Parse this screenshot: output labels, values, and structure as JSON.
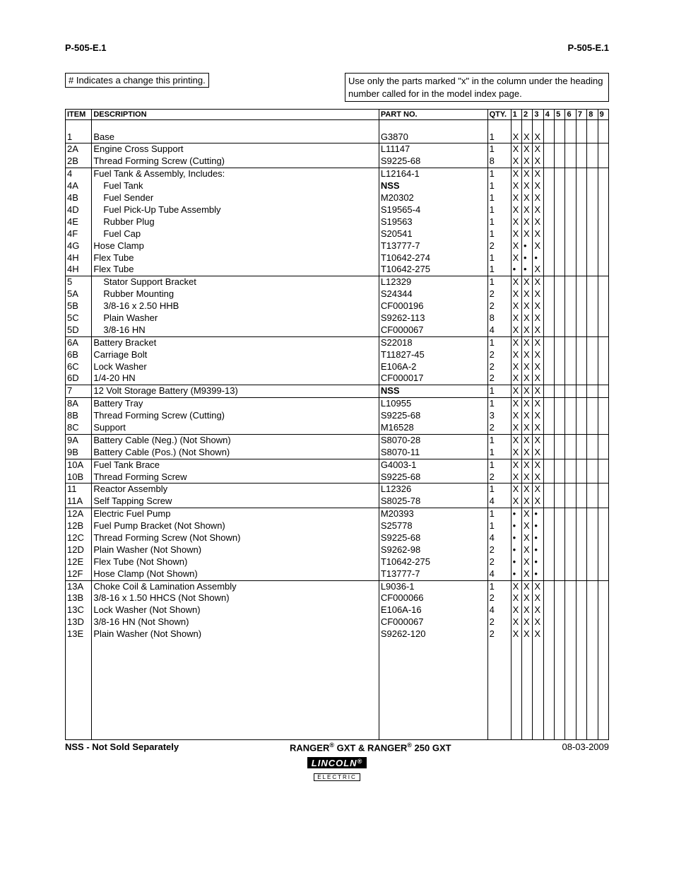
{
  "header": {
    "left": "P-505-E.1",
    "right": "P-505-E.1"
  },
  "notes": {
    "left": "# Indicates a change this printing.",
    "right": "Use only the parts marked \"x\" in the column under the heading number called for in the model index page."
  },
  "tableHeaders": {
    "item": "ITEM",
    "description": "DESCRIPTION",
    "partNo": "PART NO.",
    "qty": "QTY.",
    "cols": [
      "1",
      "2",
      "3",
      "4",
      "5",
      "6",
      "7",
      "8",
      "9"
    ]
  },
  "rows": [
    {
      "item": "1",
      "desc": "Base",
      "indent": 0,
      "part": "G3870",
      "qty": "1",
      "c": [
        "X",
        "X",
        "X",
        "",
        "",
        "",
        "",
        "",
        ""
      ],
      "groupTop": false
    },
    {
      "item": "2A",
      "desc": "Engine Cross Support",
      "indent": 0,
      "part": "L11147",
      "qty": "1",
      "c": [
        "X",
        "X",
        "X",
        "",
        "",
        "",
        "",
        "",
        ""
      ],
      "groupTop": true
    },
    {
      "item": "2B",
      "desc": "Thread Forming Screw (Cutting)",
      "indent": 0,
      "part": "S9225-68",
      "qty": "8",
      "c": [
        "X",
        "X",
        "X",
        "",
        "",
        "",
        "",
        "",
        ""
      ],
      "groupTop": false
    },
    {
      "item": "4",
      "desc": "Fuel Tank & Assembly, Includes:",
      "indent": 0,
      "part": "L12164-1",
      "qty": "1",
      "c": [
        "X",
        "X",
        "X",
        "",
        "",
        "",
        "",
        "",
        ""
      ],
      "groupTop": true
    },
    {
      "item": "4A",
      "desc": "Fuel Tank",
      "indent": 1,
      "part": "NSS",
      "partBold": true,
      "qty": "1",
      "c": [
        "X",
        "X",
        "X",
        "",
        "",
        "",
        "",
        "",
        ""
      ],
      "groupTop": false
    },
    {
      "item": "4B",
      "desc": "Fuel Sender",
      "indent": 1,
      "part": "M20302",
      "qty": "1",
      "c": [
        "X",
        "X",
        "X",
        "",
        "",
        "",
        "",
        "",
        ""
      ],
      "groupTop": false
    },
    {
      "item": "4D",
      "desc": "Fuel Pick-Up Tube Assembly",
      "indent": 1,
      "part": "S19565-4",
      "qty": "1",
      "c": [
        "X",
        "X",
        "X",
        "",
        "",
        "",
        "",
        "",
        ""
      ],
      "groupTop": false
    },
    {
      "item": "4E",
      "desc": "Rubber Plug",
      "indent": 1,
      "part": "S19563",
      "qty": "1",
      "c": [
        "X",
        "X",
        "X",
        "",
        "",
        "",
        "",
        "",
        ""
      ],
      "groupTop": false
    },
    {
      "item": "4F",
      "desc": "Fuel Cap",
      "indent": 1,
      "part": "S20541",
      "qty": "1",
      "c": [
        "X",
        "X",
        "X",
        "",
        "",
        "",
        "",
        "",
        ""
      ],
      "groupTop": false
    },
    {
      "item": "4G",
      "desc": "Hose Clamp",
      "indent": 0,
      "part": "T13777-7",
      "qty": "2",
      "c": [
        "X",
        "•",
        "X",
        "",
        "",
        "",
        "",
        "",
        ""
      ],
      "groupTop": false
    },
    {
      "item": "4H",
      "desc": "Flex Tube",
      "indent": 0,
      "part": "T10642-274",
      "qty": "1",
      "c": [
        "X",
        "•",
        "•",
        "",
        "",
        "",
        "",
        "",
        ""
      ],
      "groupTop": false
    },
    {
      "item": "4H",
      "desc": "Flex Tube",
      "indent": 0,
      "part": "T10642-275",
      "qty": "1",
      "c": [
        "•",
        "•",
        "X",
        "",
        "",
        "",
        "",
        "",
        ""
      ],
      "groupTop": false
    },
    {
      "item": "5",
      "desc": "Stator Support Bracket",
      "indent": 1,
      "part": "L12329",
      "qty": "1",
      "c": [
        "X",
        "X",
        "X",
        "",
        "",
        "",
        "",
        "",
        ""
      ],
      "groupTop": true
    },
    {
      "item": "5A",
      "desc": "Rubber Mounting",
      "indent": 1,
      "part": "S24344",
      "qty": "2",
      "c": [
        "X",
        "X",
        "X",
        "",
        "",
        "",
        "",
        "",
        ""
      ],
      "groupTop": false
    },
    {
      "item": "5B",
      "desc": "3/8-16 x 2.50 HHB",
      "indent": 1,
      "part": "CF000196",
      "qty": "2",
      "c": [
        "X",
        "X",
        "X",
        "",
        "",
        "",
        "",
        "",
        ""
      ],
      "groupTop": false
    },
    {
      "item": "5C",
      "desc": "Plain Washer",
      "indent": 1,
      "part": "S9262-113",
      "qty": "8",
      "c": [
        "X",
        "X",
        "X",
        "",
        "",
        "",
        "",
        "",
        ""
      ],
      "groupTop": false
    },
    {
      "item": "5D",
      "desc": "3/8-16 HN",
      "indent": 1,
      "part": "CF000067",
      "qty": "4",
      "c": [
        "X",
        "X",
        "X",
        "",
        "",
        "",
        "",
        "",
        ""
      ],
      "groupTop": false
    },
    {
      "item": "6A",
      "desc": "Battery Bracket",
      "indent": 0,
      "part": "S22018",
      "qty": "1",
      "c": [
        "X",
        "X",
        "X",
        "",
        "",
        "",
        "",
        "",
        ""
      ],
      "groupTop": true
    },
    {
      "item": "6B",
      "desc": "Carriage Bolt",
      "indent": 0,
      "part": "T11827-45",
      "qty": "2",
      "c": [
        "X",
        "X",
        "X",
        "",
        "",
        "",
        "",
        "",
        ""
      ],
      "groupTop": false
    },
    {
      "item": "6C",
      "desc": "Lock Washer",
      "indent": 0,
      "part": "E106A-2",
      "qty": "2",
      "c": [
        "X",
        "X",
        "X",
        "",
        "",
        "",
        "",
        "",
        ""
      ],
      "groupTop": false
    },
    {
      "item": "6D",
      "desc": "1/4-20 HN",
      "indent": 0,
      "part": "CF000017",
      "qty": "2",
      "c": [
        "X",
        "X",
        "X",
        "",
        "",
        "",
        "",
        "",
        ""
      ],
      "groupTop": false
    },
    {
      "item": "7",
      "desc": "12 Volt Storage Battery (M9399-13)",
      "indent": 0,
      "part": "NSS",
      "partBold": true,
      "qty": "1",
      "c": [
        "X",
        "X",
        "X",
        "",
        "",
        "",
        "",
        "",
        ""
      ],
      "groupTop": true
    },
    {
      "item": "8A",
      "desc": "Battery Tray",
      "indent": 0,
      "part": "L10955",
      "qty": "1",
      "c": [
        "X",
        "X",
        "X",
        "",
        "",
        "",
        "",
        "",
        ""
      ],
      "groupTop": true
    },
    {
      "item": "8B",
      "desc": "Thread Forming Screw (Cutting)",
      "indent": 0,
      "part": "S9225-68",
      "qty": "3",
      "c": [
        "X",
        "X",
        "X",
        "",
        "",
        "",
        "",
        "",
        ""
      ],
      "groupTop": false
    },
    {
      "item": "8C",
      "desc": "Support",
      "indent": 0,
      "part": "M16528",
      "qty": "2",
      "c": [
        "X",
        "X",
        "X",
        "",
        "",
        "",
        "",
        "",
        ""
      ],
      "groupTop": false
    },
    {
      "item": "9A",
      "desc": "Battery Cable (Neg.) (Not Shown)",
      "indent": 0,
      "part": "S8070-28",
      "qty": "1",
      "c": [
        "X",
        "X",
        "X",
        "",
        "",
        "",
        "",
        "",
        ""
      ],
      "groupTop": true
    },
    {
      "item": "9B",
      "desc": "Battery Cable (Pos.) (Not Shown)",
      "indent": 0,
      "part": "S8070-11",
      "qty": "1",
      "c": [
        "X",
        "X",
        "X",
        "",
        "",
        "",
        "",
        "",
        ""
      ],
      "groupTop": false
    },
    {
      "item": "10A",
      "desc": "Fuel Tank Brace",
      "indent": 0,
      "part": "G4003-1",
      "qty": "1",
      "c": [
        "X",
        "X",
        "X",
        "",
        "",
        "",
        "",
        "",
        ""
      ],
      "groupTop": true
    },
    {
      "item": "10B",
      "desc": "Thread Forming Screw",
      "indent": 0,
      "part": "S9225-68",
      "qty": "2",
      "c": [
        "X",
        "X",
        "X",
        "",
        "",
        "",
        "",
        "",
        ""
      ],
      "groupTop": false
    },
    {
      "item": "11",
      "desc": "Reactor Assembly",
      "indent": 0,
      "part": "L12326",
      "qty": "1",
      "c": [
        "X",
        "X",
        "X",
        "",
        "",
        "",
        "",
        "",
        ""
      ],
      "groupTop": true
    },
    {
      "item": "11A",
      "desc": "Self Tapping Screw",
      "indent": 0,
      "part": "S8025-78",
      "qty": "4",
      "c": [
        "X",
        "X",
        "X",
        "",
        "",
        "",
        "",
        "",
        ""
      ],
      "groupTop": false
    },
    {
      "item": "12A",
      "desc": "Electric Fuel Pump",
      "indent": 0,
      "part": "M20393",
      "qty": "1",
      "c": [
        "•",
        "X",
        "•",
        "",
        "",
        "",
        "",
        "",
        ""
      ],
      "groupTop": true
    },
    {
      "item": "12B",
      "desc": "Fuel Pump Bracket (Not Shown)",
      "indent": 0,
      "part": "S25778",
      "qty": "1",
      "c": [
        "•",
        "X",
        "•",
        "",
        "",
        "",
        "",
        "",
        ""
      ],
      "groupTop": false
    },
    {
      "item": "12C",
      "desc": "Thread Forming Screw (Not Shown)",
      "indent": 0,
      "part": "S9225-68",
      "qty": "4",
      "c": [
        "•",
        "X",
        "•",
        "",
        "",
        "",
        "",
        "",
        ""
      ],
      "groupTop": false
    },
    {
      "item": "12D",
      "desc": "Plain Washer (Not Shown)",
      "indent": 0,
      "part": "S9262-98",
      "qty": "2",
      "c": [
        "•",
        "X",
        "•",
        "",
        "",
        "",
        "",
        "",
        ""
      ],
      "groupTop": false
    },
    {
      "item": "12E",
      "desc": "Flex Tube (Not Shown)",
      "indent": 0,
      "part": "T10642-275",
      "qty": "2",
      "c": [
        "•",
        "X",
        "•",
        "",
        "",
        "",
        "",
        "",
        ""
      ],
      "groupTop": false
    },
    {
      "item": "12F",
      "desc": "Hose Clamp (Not Shown)",
      "indent": 0,
      "part": "T13777-7",
      "qty": "4",
      "c": [
        "•",
        "X",
        "•",
        "",
        "",
        "",
        "",
        "",
        ""
      ],
      "groupTop": false
    },
    {
      "item": "13A",
      "desc": "Choke Coil & Lamination Assembly",
      "indent": 0,
      "part": "L9036-1",
      "qty": "1",
      "c": [
        "X",
        "X",
        "X",
        "",
        "",
        "",
        "",
        "",
        ""
      ],
      "groupTop": true
    },
    {
      "item": "13B",
      "desc": "3/8-16 x 1.50 HHCS (Not Shown)",
      "indent": 0,
      "part": "CF000066",
      "qty": "2",
      "c": [
        "X",
        "X",
        "X",
        "",
        "",
        "",
        "",
        "",
        ""
      ],
      "groupTop": false
    },
    {
      "item": "13C",
      "desc": "Lock Washer (Not Shown)",
      "indent": 0,
      "part": "E106A-16",
      "qty": "4",
      "c": [
        "X",
        "X",
        "X",
        "",
        "",
        "",
        "",
        "",
        ""
      ],
      "groupTop": false
    },
    {
      "item": "13D",
      "desc": "3/8-16 HN (Not Shown)",
      "indent": 0,
      "part": "CF000067",
      "qty": "2",
      "c": [
        "X",
        "X",
        "X",
        "",
        "",
        "",
        "",
        "",
        ""
      ],
      "groupTop": false
    },
    {
      "item": "13E",
      "desc": "Plain Washer (Not Shown)",
      "indent": 0,
      "part": "S9262-120",
      "qty": "2",
      "c": [
        "X",
        "X",
        "X",
        "",
        "",
        "",
        "",
        "",
        ""
      ],
      "groupTop": false
    }
  ],
  "footer": {
    "left": "NSS - Not Sold Separately",
    "center": "RANGER® GXT & RANGER® 250 GXT",
    "right": "08-03-2009"
  },
  "logo": {
    "main": "LINCOLN",
    "sub": "ELECTRIC"
  }
}
